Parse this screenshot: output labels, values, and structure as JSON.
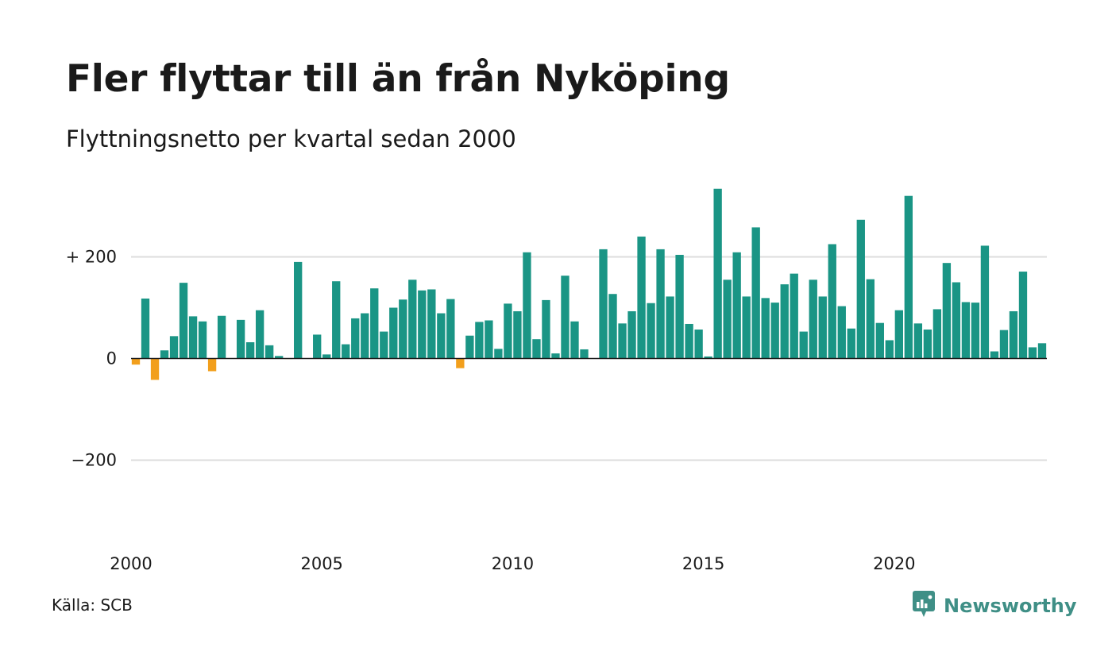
{
  "title": "Fler flyttar till än från Nyköping",
  "subtitle": "Flyttningsnetto per kvartal sedan 2000",
  "source": "Källa: SCB",
  "brand": {
    "name": "Newsworthy",
    "icon": "newsworthy-logo-icon"
  },
  "colors": {
    "positive": "#1a9585",
    "negative": "#f29f1c",
    "grid": "#dddddd",
    "axis": "#1a1a1a"
  },
  "chart_data": {
    "type": "bar",
    "title": "Fler flyttar till än från Nyköping",
    "subtitle": "Flyttningsnetto per kvartal sedan 2000",
    "x_start": 2000,
    "periods_per_year": 4,
    "x_ticks": [
      "2000",
      "2005",
      "2010",
      "2015",
      "2020"
    ],
    "y_ticks": [
      {
        "value": 200,
        "label": "+ 200"
      },
      {
        "value": 0,
        "label": "0"
      },
      {
        "value": -200,
        "label": "−200"
      }
    ],
    "ylim": [
      -370,
      340
    ],
    "grid": true,
    "values": [
      -12,
      118,
      -42,
      16,
      44,
      149,
      83,
      73,
      -25,
      84,
      0,
      76,
      32,
      95,
      26,
      5,
      -1,
      190,
      0,
      47,
      8,
      152,
      28,
      79,
      89,
      138,
      53,
      100,
      116,
      155,
      134,
      136,
      89,
      117,
      -19,
      45,
      72,
      75,
      19,
      108,
      93,
      209,
      38,
      115,
      10,
      163,
      73,
      18,
      0,
      215,
      127,
      69,
      93,
      240,
      109,
      215,
      122,
      204,
      68,
      57,
      4,
      334,
      155,
      209,
      122,
      258,
      119,
      110,
      146,
      167,
      53,
      155,
      122,
      225,
      103,
      59,
      273,
      156,
      70,
      36,
      95,
      320,
      69,
      57,
      97,
      188,
      150,
      111,
      110,
      222,
      14,
      56,
      93,
      171,
      22,
      30
    ]
  }
}
